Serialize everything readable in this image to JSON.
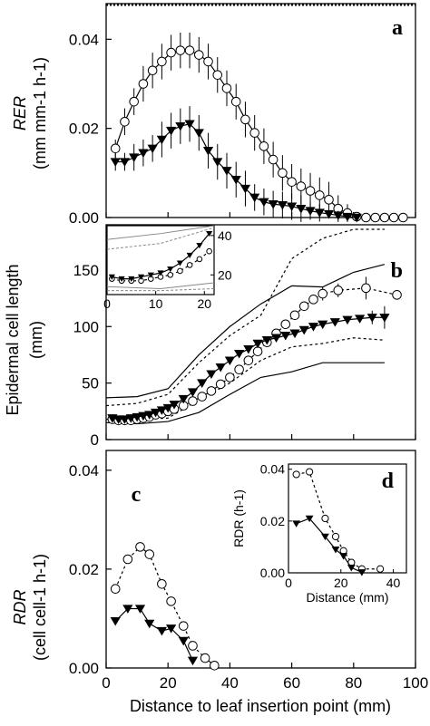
{
  "chart_data": [
    {
      "type": "line",
      "panel_label": "a",
      "ylabel_main": "RER",
      "ylabel_unit": "(mm mm-1 h-1)",
      "ylim": [
        0,
        0.048
      ],
      "xlim": [
        0,
        100
      ],
      "yticks": [
        "0.00",
        "0.02",
        "0.04"
      ],
      "ytick_values": [
        0,
        0.02,
        0.04
      ],
      "grid": false,
      "series": [
        {
          "marker": "open-circle",
          "x": [
            3,
            6,
            9,
            12,
            15,
            18,
            21,
            24,
            27,
            30,
            33,
            36,
            39,
            42,
            45,
            48,
            51,
            54,
            57,
            60,
            63,
            66,
            69,
            72,
            75,
            78,
            81,
            84,
            87,
            90,
            93,
            96
          ],
          "y": [
            0.0155,
            0.0215,
            0.026,
            0.03,
            0.033,
            0.035,
            0.037,
            0.0375,
            0.0375,
            0.0365,
            0.035,
            0.032,
            0.029,
            0.026,
            0.022,
            0.019,
            0.016,
            0.013,
            0.01,
            0.008,
            0.007,
            0.006,
            0.005,
            0.004,
            0.002,
            0.001,
            0.0002,
            0.0,
            0.0,
            0.0,
            0.0,
            0.0
          ],
          "err": [
            0.002,
            0.003,
            0.003,
            0.004,
            0.004,
            0.004,
            0.004,
            0.004,
            0.004,
            0.004,
            0.004,
            0.004,
            0.004,
            0.004,
            0.004,
            0.004,
            0.004,
            0.004,
            0.004,
            0.004,
            0.004,
            0.004,
            0.004,
            0.004,
            0.003,
            0.002,
            0.001,
            0.0005,
            0,
            0,
            0,
            0
          ]
        },
        {
          "marker": "filled-triangle-down",
          "x": [
            3,
            6,
            9,
            12,
            15,
            18,
            21,
            24,
            27,
            30,
            33,
            36,
            39,
            42,
            45,
            48,
            51,
            54,
            57,
            60,
            63,
            66,
            69,
            72,
            75,
            78,
            81
          ],
          "y": [
            0.0125,
            0.0125,
            0.0135,
            0.0145,
            0.0155,
            0.0175,
            0.0195,
            0.0205,
            0.021,
            0.019,
            0.015,
            0.0125,
            0.0105,
            0.0085,
            0.0065,
            0.0045,
            0.0035,
            0.003,
            0.0028,
            0.0025,
            0.002,
            0.0015,
            0.0011,
            0.0008,
            0.0005,
            0.0002,
            0.0
          ],
          "err": [
            0.002,
            0.002,
            0.003,
            0.003,
            0.003,
            0.004,
            0.004,
            0.004,
            0.004,
            0.004,
            0.004,
            0.004,
            0.004,
            0.004,
            0.004,
            0.003,
            0.003,
            0.003,
            0.003,
            0.003,
            0.003,
            0.002,
            0.002,
            0.001,
            0.001,
            0.0005,
            0
          ]
        }
      ]
    },
    {
      "type": "line",
      "panel_label": "b",
      "ylabel_main": "Epidermal cell length",
      "ylabel_unit": "(mm)",
      "ylim": [
        0,
        190
      ],
      "xlim": [
        0,
        100
      ],
      "yticks": [
        "0",
        "50",
        "100",
        "150"
      ],
      "ytick_values": [
        0,
        50,
        100,
        150
      ],
      "grid": false,
      "series": [
        {
          "marker": "open-circle",
          "x": [
            2,
            4,
            6,
            8,
            10,
            12,
            14,
            16,
            18,
            20,
            22,
            25,
            28,
            31,
            34,
            37,
            40,
            43,
            46,
            49,
            52,
            55,
            58,
            61,
            64,
            67,
            70,
            75,
            84,
            94
          ],
          "y": [
            18,
            17,
            17,
            17,
            18,
            19,
            20,
            22,
            23,
            25,
            27,
            30,
            34,
            38,
            43,
            49,
            55,
            62,
            70,
            78,
            86,
            94,
            102,
            110,
            118,
            124,
            129,
            132,
            134,
            128
          ],
          "err": [
            2,
            2,
            2,
            2,
            2,
            2,
            2,
            2,
            2,
            2,
            2,
            2,
            2,
            2,
            2,
            2,
            2,
            2,
            2,
            2,
            2,
            2,
            2,
            2,
            2,
            3,
            6,
            6,
            10,
            4
          ]
        },
        {
          "marker": "filled-triangle-down",
          "x": [
            2,
            4,
            6,
            8,
            10,
            12,
            14,
            16,
            18,
            20,
            22,
            25,
            28,
            31,
            34,
            37,
            40,
            43,
            46,
            49,
            52,
            55,
            58,
            61,
            64,
            67,
            70,
            74,
            78,
            82,
            86,
            90
          ],
          "y": [
            19,
            18,
            18,
            19,
            20,
            21,
            22,
            24,
            26,
            28,
            31,
            36,
            42,
            50,
            58,
            64,
            70,
            76,
            80,
            85,
            88,
            90,
            92,
            94,
            97,
            100,
            102,
            104,
            106,
            107,
            108,
            108
          ],
          "err": [
            2,
            2,
            2,
            2,
            2,
            2,
            2,
            2,
            2,
            2,
            2,
            2,
            2,
            2,
            2,
            2,
            2,
            2,
            2,
            2,
            2,
            2,
            2,
            2,
            2,
            2,
            2,
            2,
            2,
            2,
            6,
            10
          ]
        }
      ],
      "envelope_solid_upper": {
        "x": [
          0,
          10,
          20,
          30,
          40,
          50,
          60,
          70,
          80,
          90
        ],
        "y": [
          37,
          38,
          45,
          75,
          100,
          120,
          136,
          135,
          148,
          155
        ]
      },
      "envelope_solid_lower": {
        "x": [
          0,
          10,
          20,
          30,
          40,
          50,
          60,
          70,
          80,
          90
        ],
        "y": [
          15,
          14,
          16,
          24,
          40,
          55,
          60,
          68,
          68,
          68
        ]
      },
      "envelope_dashed_upper": {
        "x": [
          0,
          10,
          20,
          30,
          40,
          50,
          60,
          70,
          80,
          90
        ],
        "y": [
          30,
          32,
          40,
          68,
          92,
          110,
          160,
          178,
          186,
          186
        ]
      },
      "envelope_dashed_lower": {
        "x": [
          0,
          10,
          20,
          30,
          40,
          50,
          60,
          70,
          80,
          90
        ],
        "y": [
          18,
          18,
          19,
          35,
          50,
          70,
          82,
          85,
          90,
          88
        ]
      },
      "inset": {
        "xlim": [
          0,
          22
        ],
        "ylim": [
          10,
          45
        ],
        "xticks": [
          "0",
          "10",
          "20"
        ],
        "xtick_values": [
          0,
          10,
          20
        ],
        "yticks": [
          "20",
          "40"
        ],
        "ytick_values": [
          20,
          40
        ],
        "series": [
          {
            "marker": "open-circle",
            "x": [
              1,
              3,
              5,
              7,
              9,
              11,
              13,
              15,
              17,
              19,
              21
            ],
            "y": [
              18,
              17,
              17,
              17,
              18,
              19,
              20,
              22,
              25,
              28,
              32
            ]
          },
          {
            "marker": "filled-triangle-down",
            "x": [
              1,
              3,
              5,
              7,
              9,
              11,
              13,
              15,
              17,
              19,
              21
            ],
            "y": [
              19,
              18,
              18,
              19,
              20,
              21,
              23,
              26,
              30,
              35,
              41
            ]
          }
        ],
        "bands": [
          {
            "x": [
              0,
              11,
              22
            ],
            "y": [
              38,
              41,
              45
            ]
          },
          {
            "x": [
              0,
              11,
              22
            ],
            "y": [
              33,
              36,
              44
            ]
          },
          {
            "x": [
              0,
              11,
              22
            ],
            "y": [
              14,
              13,
              16
            ]
          },
          {
            "x": [
              0,
              11,
              22
            ],
            "y": [
              12,
              12,
              13
            ]
          }
        ]
      }
    },
    {
      "type": "line",
      "panel_label": "c",
      "ylabel_main": "RDR",
      "ylabel_unit": "(cell cell-1 h-1)",
      "xlabel": "Distance to leaf insertion point (mm)",
      "ylim": [
        0,
        0.044
      ],
      "xlim": [
        0,
        100
      ],
      "yticks": [
        "0.00",
        "0.02",
        "0.04"
      ],
      "ytick_values": [
        0,
        0.02,
        0.04
      ],
      "xticks": [
        "0",
        "20",
        "40",
        "60",
        "80",
        "100"
      ],
      "xtick_values": [
        0,
        20,
        40,
        60,
        80,
        100
      ],
      "grid": false,
      "series": [
        {
          "marker": "open-circle",
          "x": [
            3,
            7,
            11,
            14,
            18,
            21,
            25,
            28,
            32,
            35
          ],
          "y": [
            0.016,
            0.022,
            0.0245,
            0.023,
            0.017,
            0.0135,
            0.0085,
            0.0045,
            0.002,
            0.0005
          ]
        },
        {
          "marker": "filled-triangle-down",
          "x": [
            3,
            7,
            11,
            14,
            18,
            21,
            25,
            28
          ],
          "y": [
            0.0095,
            0.012,
            0.012,
            0.009,
            0.0075,
            0.008,
            0.0055,
            0.0015
          ]
        }
      ]
    },
    {
      "type": "line",
      "panel_label": "d",
      "ylabel_main": "RDR",
      "ylabel_unit": "(h-1)",
      "xlabel": "Distance (mm)",
      "ylim": [
        0,
        0.042
      ],
      "xlim": [
        0,
        45
      ],
      "yticks": [
        "0.00",
        "0.02",
        "0.04"
      ],
      "ytick_values": [
        0,
        0.02,
        0.04
      ],
      "xticks": [
        "0",
        "20",
        "40"
      ],
      "xtick_values": [
        0,
        20,
        40
      ],
      "series": [
        {
          "marker": "open-circle",
          "x": [
            3,
            8,
            14,
            18,
            21,
            24,
            28,
            35
          ],
          "y": [
            0.038,
            0.039,
            0.021,
            0.014,
            0.0085,
            0.004,
            0.0015,
            0.0015
          ]
        },
        {
          "marker": "filled-triangle-down",
          "x": [
            3,
            8,
            14,
            18,
            21,
            24,
            28
          ],
          "y": [
            0.019,
            0.021,
            0.014,
            0.009,
            0.0065,
            0.002,
            0.0002
          ]
        }
      ]
    }
  ]
}
